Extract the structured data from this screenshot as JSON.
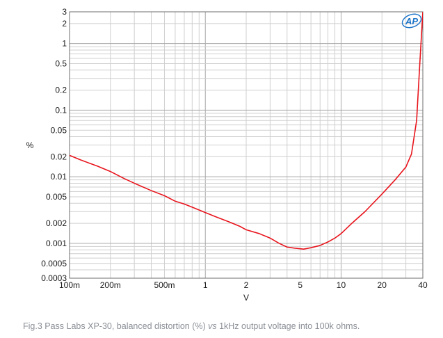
{
  "chart_data": {
    "type": "line",
    "x_scale": "log",
    "y_scale": "log",
    "xlabel": "V",
    "ylabel": "%",
    "xlim": [
      0.1,
      40
    ],
    "ylim": [
      0.0003,
      3
    ],
    "x_ticks": [
      {
        "value": 0.1,
        "label": "100m"
      },
      {
        "value": 0.2,
        "label": "200m"
      },
      {
        "value": 0.5,
        "label": "500m"
      },
      {
        "value": 1,
        "label": "1"
      },
      {
        "value": 2,
        "label": "2"
      },
      {
        "value": 5,
        "label": "5"
      },
      {
        "value": 10,
        "label": "10"
      },
      {
        "value": 20,
        "label": "20"
      },
      {
        "value": 40,
        "label": "40"
      }
    ],
    "y_ticks": [
      {
        "value": 3,
        "label": "3"
      },
      {
        "value": 2,
        "label": "2"
      },
      {
        "value": 1,
        "label": "1"
      },
      {
        "value": 0.5,
        "label": "0.5"
      },
      {
        "value": 0.2,
        "label": "0.2"
      },
      {
        "value": 0.1,
        "label": "0.1"
      },
      {
        "value": 0.05,
        "label": "0.05"
      },
      {
        "value": 0.02,
        "label": "0.02"
      },
      {
        "value": 0.01,
        "label": "0.01"
      },
      {
        "value": 0.005,
        "label": "0.005"
      },
      {
        "value": 0.002,
        "label": "0.002"
      },
      {
        "value": 0.001,
        "label": "0.001"
      },
      {
        "value": 0.0005,
        "label": "0.0005"
      },
      {
        "value": 0.0003,
        "label": "0.0003"
      }
    ],
    "grid": true,
    "series": [
      {
        "color": "#e8141c",
        "x": [
          0.1,
          0.12,
          0.14,
          0.16,
          0.2,
          0.25,
          0.3,
          0.4,
          0.5,
          0.6,
          0.7,
          0.8,
          1,
          1.2,
          1.5,
          1.8,
          2,
          2.5,
          3,
          3.5,
          4,
          4.5,
          5,
          5.3,
          6,
          7,
          8,
          9,
          10,
          12,
          15,
          20,
          25,
          30,
          33,
          36,
          38,
          40
        ],
        "y": [
          0.021,
          0.018,
          0.016,
          0.0145,
          0.012,
          0.0095,
          0.008,
          0.0062,
          0.0052,
          0.0043,
          0.0039,
          0.0035,
          0.0029,
          0.0025,
          0.0021,
          0.0018,
          0.0016,
          0.0014,
          0.0012,
          0.001,
          0.00088,
          0.00085,
          0.00083,
          0.00082,
          0.00086,
          0.00093,
          0.00105,
          0.0012,
          0.0014,
          0.002,
          0.003,
          0.0055,
          0.009,
          0.014,
          0.022,
          0.07,
          0.5,
          3
        ]
      }
    ]
  },
  "logo": {
    "text": "AP",
    "color": "#1a73c8"
  },
  "caption": {
    "part1": "Fig.3 Pass Labs XP-30, balanced distortion (%) ",
    "italic": "vs",
    "part2": " 1kHz output voltage into 100k ohms."
  }
}
